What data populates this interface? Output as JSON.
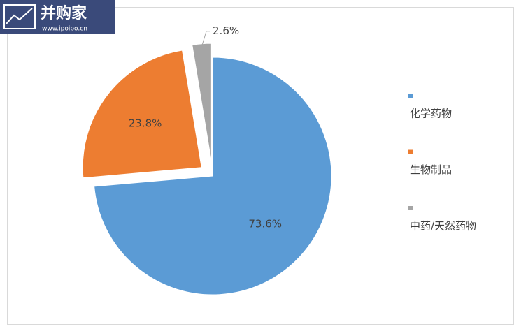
{
  "watermark": {
    "title": "并购家",
    "url": "www.ipoipo.cn"
  },
  "chart_data": {
    "type": "pie",
    "categories": [
      "化学药物",
      "生物制品",
      "中药/天然药物"
    ],
    "values": [
      73.6,
      23.8,
      2.6
    ],
    "value_labels": [
      "73.6%",
      "23.8%",
      "2.6%"
    ],
    "colors": [
      "#5b9bd5",
      "#ed7d31",
      "#a5a5a5"
    ],
    "legend": "right"
  }
}
